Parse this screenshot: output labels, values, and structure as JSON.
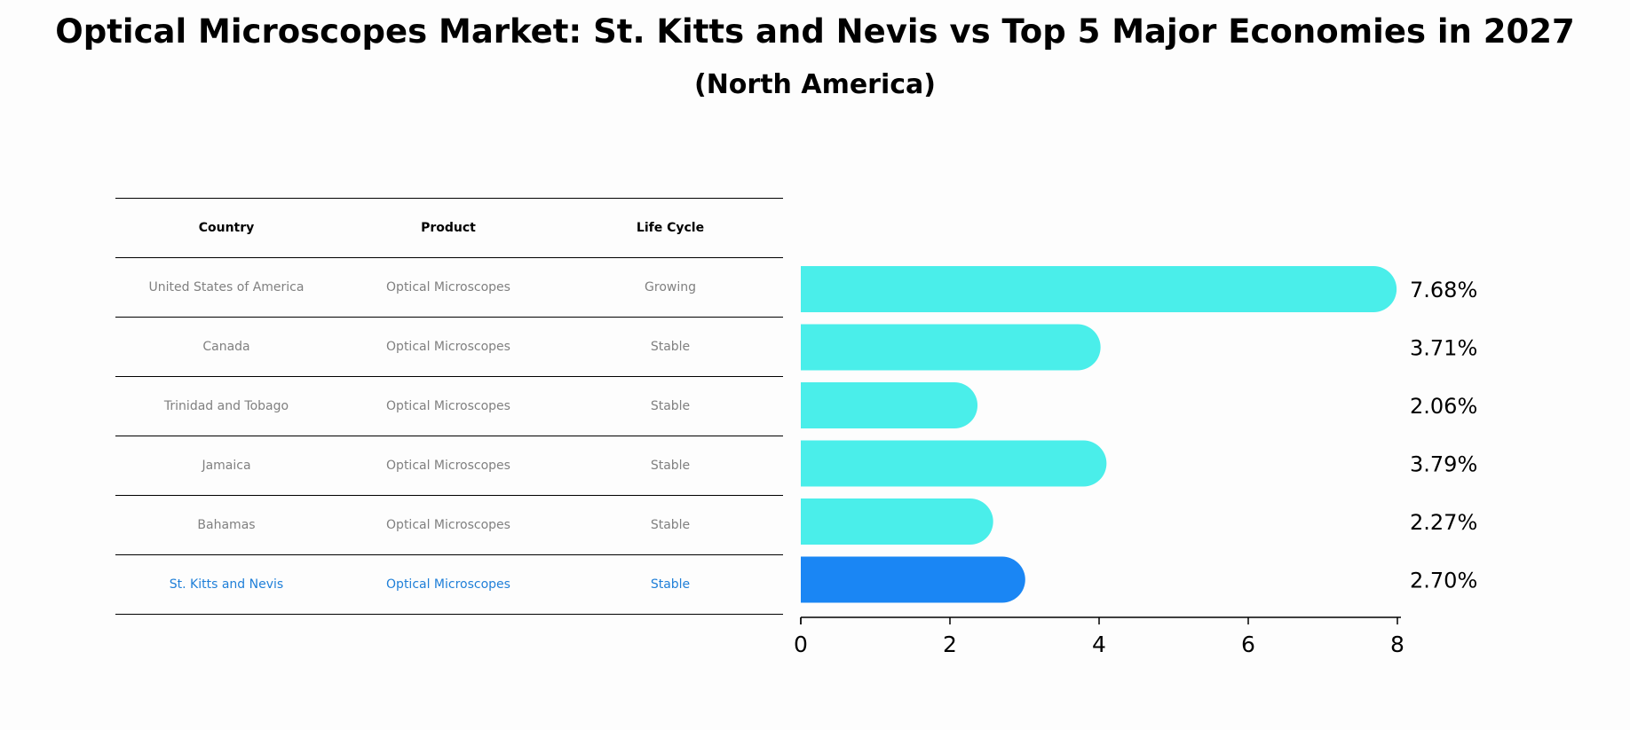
{
  "chart_data": {
    "type": "bar",
    "orientation": "horizontal",
    "title": "Optical Microscopes Market: St. Kitts and Nevis vs Top 5 Major Economies in 2027",
    "subtitle": "(North America)",
    "table": {
      "columns": [
        "Country",
        "Product",
        "Life Cycle"
      ],
      "rows": [
        [
          "United States of America",
          "Optical Microscopes",
          "Growing"
        ],
        [
          "Canada",
          "Optical Microscopes",
          "Stable"
        ],
        [
          "Trinidad and Tobago",
          "Optical Microscopes",
          "Stable"
        ],
        [
          "Jamaica",
          "Optical Microscopes",
          "Stable"
        ],
        [
          "Bahamas",
          "Optical Microscopes",
          "Stable"
        ],
        [
          "St. Kitts and Nevis",
          "Optical Microscopes",
          "Stable"
        ]
      ],
      "highlight_row": 5
    },
    "categories": [
      "United States of America",
      "Canada",
      "Trinidad and Tobago",
      "Jamaica",
      "Bahamas",
      "St. Kitts and Nevis"
    ],
    "values": [
      7.68,
      3.71,
      2.06,
      3.79,
      2.27,
      2.7
    ],
    "value_labels": [
      "7.68%",
      "3.71%",
      "2.06%",
      "3.79%",
      "2.27%",
      "2.70%"
    ],
    "xlim": [
      0,
      8
    ],
    "xticks": [
      0,
      2,
      4,
      6,
      8
    ],
    "colors": {
      "default_bar": "#4aeeea",
      "highlight_bar": "#1a86f4",
      "highlight_text": "#1f7fd8",
      "body_text": "#808080"
    }
  }
}
